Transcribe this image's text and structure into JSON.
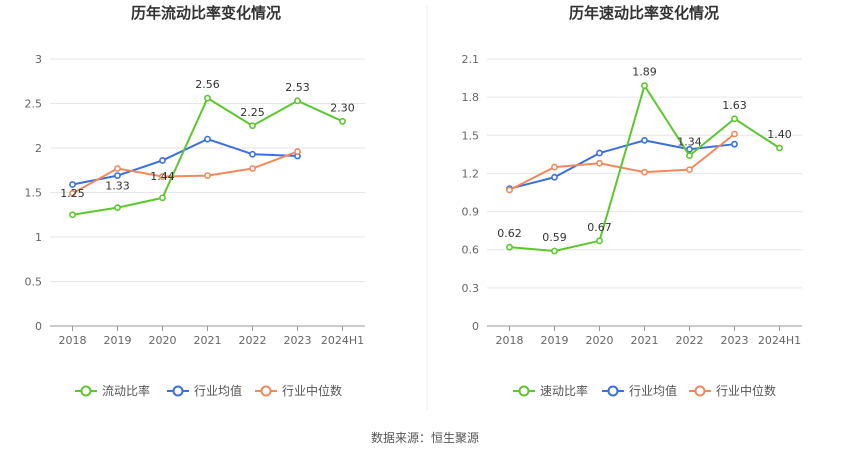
{
  "source_label": "数据来源：恒生聚源",
  "colors": {
    "main": "#5cc72e",
    "avg": "#3a6fe0",
    "median": "#f08a5d",
    "grid": "#e6e6e6",
    "axis": "#999999"
  },
  "chart_data": [
    {
      "type": "line",
      "title": "历年流动比率变化情况",
      "categories": [
        "2018",
        "2019",
        "2020",
        "2021",
        "2022",
        "2023",
        "2024H1"
      ],
      "ylim": [
        0,
        3
      ],
      "yticks": [
        "0",
        "0.5",
        "1",
        "1.5",
        "2",
        "2.5",
        "3"
      ],
      "ytick_values": [
        0,
        0.5,
        1,
        1.5,
        2,
        2.5,
        3
      ],
      "series": [
        {
          "name": "流动比率",
          "key": "main",
          "values": [
            1.25,
            1.33,
            1.44,
            2.56,
            2.25,
            2.53,
            2.3
          ],
          "labels": [
            "1.25",
            "1.33",
            "1.44",
            "2.56",
            "2.25",
            "2.53",
            "2.30"
          ]
        },
        {
          "name": "行业均值",
          "key": "avg",
          "values": [
            1.59,
            1.69,
            1.86,
            2.1,
            1.93,
            1.91,
            null
          ]
        },
        {
          "name": "行业中位数",
          "key": "median",
          "values": [
            1.49,
            1.77,
            1.68,
            1.69,
            1.77,
            1.96,
            null
          ]
        }
      ]
    },
    {
      "type": "line",
      "title": "历年速动比率变化情况",
      "categories": [
        "2018",
        "2019",
        "2020",
        "2021",
        "2022",
        "2023",
        "2024H1"
      ],
      "ylim": [
        0,
        2.1
      ],
      "yticks": [
        "0",
        "0.3",
        "0.6",
        "0.9",
        "1.2",
        "1.5",
        "1.8",
        "2.1"
      ],
      "ytick_values": [
        0,
        0.3,
        0.6,
        0.9,
        1.2,
        1.5,
        1.8,
        2.1
      ],
      "series": [
        {
          "name": "速动比率",
          "key": "main",
          "values": [
            0.62,
            0.59,
            0.67,
            1.89,
            1.34,
            1.63,
            1.4
          ],
          "labels": [
            "0.62",
            "0.59",
            "0.67",
            "1.89",
            "1.34",
            "1.63",
            "1.40"
          ]
        },
        {
          "name": "行业均值",
          "key": "avg",
          "values": [
            1.08,
            1.17,
            1.36,
            1.46,
            1.39,
            1.43,
            null
          ]
        },
        {
          "name": "行业中位数",
          "key": "median",
          "values": [
            1.07,
            1.25,
            1.28,
            1.21,
            1.23,
            1.51,
            null
          ]
        }
      ]
    }
  ]
}
